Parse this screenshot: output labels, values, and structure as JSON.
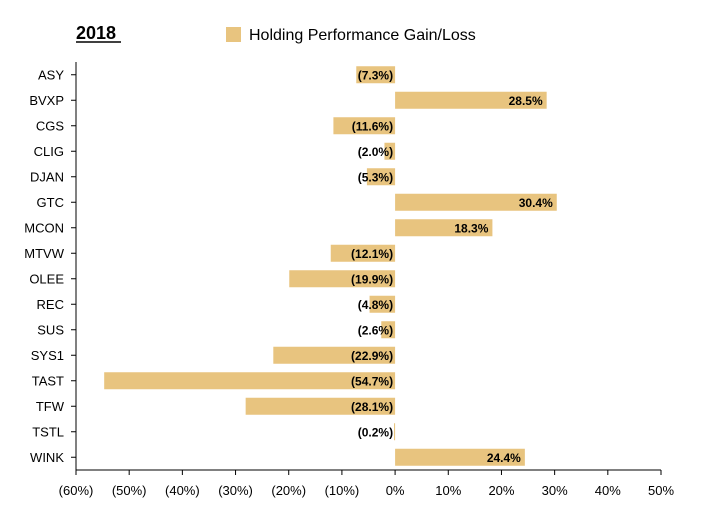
{
  "chart_data": {
    "type": "bar",
    "orientation": "horizontal",
    "title": "2018",
    "categories": [
      "ASY",
      "BVXP",
      "CGS",
      "CLIG",
      "DJAN",
      "GTC",
      "MCON",
      "MTVW",
      "OLEE",
      "REC",
      "SUS",
      "SYS1",
      "TAST",
      "TFW",
      "TSTL",
      "WINK"
    ],
    "series": [
      {
        "name": "Holding Performance Gain/Loss",
        "values": [
          -7.3,
          28.5,
          -11.6,
          -2.0,
          -5.3,
          30.4,
          18.3,
          -12.1,
          -19.9,
          -4.8,
          -2.6,
          -22.9,
          -54.7,
          -28.1,
          -0.2,
          24.4
        ],
        "labels": [
          "(7.3%)",
          "28.5%",
          "(11.6%)",
          "(2.0%)",
          "(5.3%)",
          "30.4%",
          "18.3%",
          "(12.1%)",
          "(19.9%)",
          "(4.8%)",
          "(2.6%)",
          "(22.9%)",
          "(54.7%)",
          "(28.1%)",
          "(0.2%)",
          "24.4%"
        ]
      }
    ],
    "xlim": [
      -60,
      50
    ],
    "xticks": [
      -60,
      -50,
      -40,
      -30,
      -20,
      -10,
      0,
      10,
      20,
      30,
      40,
      50
    ],
    "xtick_labels": [
      "(60%)",
      "(50%)",
      "(40%)",
      "(30%)",
      "(20%)",
      "(10%)",
      "0%",
      "10%",
      "20%",
      "30%",
      "40%",
      "50%"
    ],
    "legend_position": "top",
    "grid": false,
    "colors": {
      "bar": "#E8C47F",
      "axis": "#000000"
    }
  }
}
